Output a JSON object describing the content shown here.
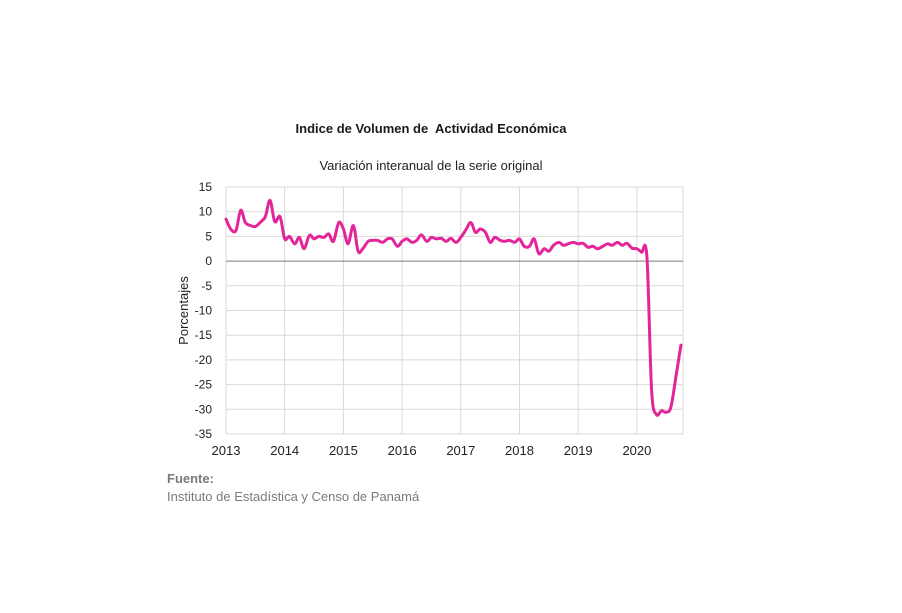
{
  "chart_data": {
    "type": "line",
    "title": "Indice de Volumen de  Actividad Económica",
    "subtitle": "Variación interanual de la serie original",
    "ylabel": "Porcentajes",
    "xlabel": "",
    "ylim": [
      -35,
      15
    ],
    "yticks": [
      15,
      10,
      5,
      0,
      -5,
      -10,
      -15,
      -20,
      -25,
      -30,
      -35
    ],
    "xlim": [
      2013,
      2020.8
    ],
    "xticks": [
      "2013",
      "2014",
      "2015",
      "2016",
      "2017",
      "2018",
      "2019",
      "2020"
    ],
    "grid": "vertical-and-horizontal",
    "color": "#e3259a",
    "series": [
      {
        "x": [
          2013.0,
          2013.08,
          2013.17,
          2013.25,
          2013.33,
          2013.42,
          2013.5,
          2013.58,
          2013.67,
          2013.75,
          2013.83,
          2013.92,
          2014.0,
          2014.08,
          2014.17,
          2014.25,
          2014.33,
          2014.42,
          2014.5,
          2014.58,
          2014.67,
          2014.75,
          2014.83,
          2014.92,
          2015.0,
          2015.08,
          2015.17,
          2015.25,
          2015.33,
          2015.42,
          2015.5,
          2015.58,
          2015.67,
          2015.75,
          2015.83,
          2015.92,
          2016.0,
          2016.08,
          2016.17,
          2016.25,
          2016.33,
          2016.42,
          2016.5,
          2016.58,
          2016.67,
          2016.75,
          2016.83,
          2016.92,
          2017.0,
          2017.08,
          2017.17,
          2017.25,
          2017.33,
          2017.42,
          2017.5,
          2017.58,
          2017.67,
          2017.75,
          2017.83,
          2017.92,
          2018.0,
          2018.08,
          2018.17,
          2018.25,
          2018.33,
          2018.42,
          2018.5,
          2018.58,
          2018.67,
          2018.75,
          2018.83,
          2018.92,
          2019.0,
          2019.08,
          2019.17,
          2019.25,
          2019.33,
          2019.42,
          2019.5,
          2019.58,
          2019.67,
          2019.75,
          2019.83,
          2019.92,
          2020.0,
          2020.08,
          2020.17,
          2020.25,
          2020.33,
          2020.42,
          2020.5,
          2020.58,
          2020.67,
          2020.75
        ],
        "y": [
          8.5,
          6.5,
          6.2,
          10.3,
          7.8,
          7.2,
          7.0,
          7.8,
          9.0,
          12.3,
          8.0,
          9.0,
          4.5,
          5.0,
          3.5,
          4.8,
          2.5,
          5.2,
          4.5,
          5.0,
          4.8,
          5.5,
          4.0,
          7.8,
          6.5,
          3.5,
          7.2,
          2.0,
          2.5,
          4.0,
          4.2,
          4.2,
          3.8,
          4.5,
          4.5,
          3.0,
          4.0,
          4.5,
          3.8,
          4.2,
          5.3,
          4.0,
          4.8,
          4.5,
          4.6,
          4.0,
          4.6,
          3.8,
          4.8,
          6.2,
          7.8,
          5.8,
          6.5,
          5.8,
          3.8,
          4.8,
          4.2,
          4.0,
          4.2,
          3.8,
          4.5,
          3.0,
          3.0,
          4.5,
          1.5,
          2.5,
          2.0,
          3.2,
          3.8,
          3.2,
          3.5,
          3.8,
          3.5,
          3.6,
          2.8,
          3.0,
          2.5,
          3.0,
          3.5,
          3.2,
          3.8,
          3.2,
          3.6,
          2.6,
          2.5,
          1.8,
          1.0,
          -26.0,
          -31.0,
          -30.3,
          -30.6,
          -29.5,
          -23.0,
          -17.0
        ]
      }
    ]
  },
  "source": {
    "label": "Fuente:",
    "text": "Instituto de Estadística y Censo de Panamá"
  }
}
